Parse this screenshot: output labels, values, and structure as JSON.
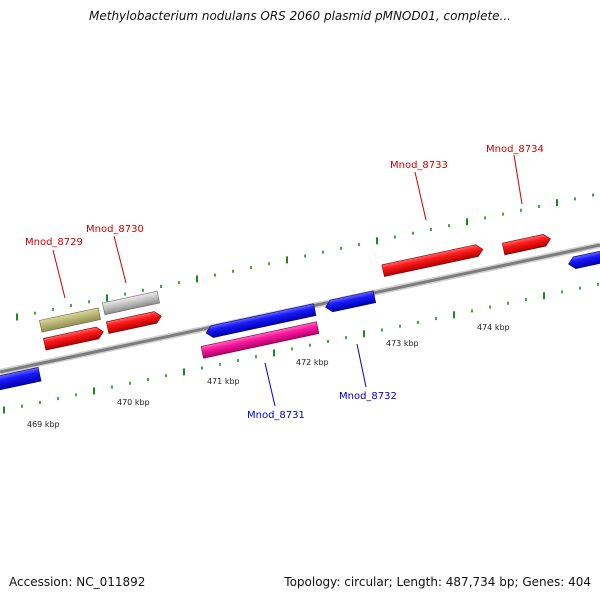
{
  "title": "Methylobacterium nodulans ORS 2060 plasmid pMNOD01, complete...",
  "footer": {
    "accession": "Accession: NC_011892",
    "summary": "Topology: circular; Length: 487,734 bp; Genes: 404"
  },
  "colors": {
    "forward_gene": "#ff1a1a",
    "reverse_gene": "#1a1aff",
    "other_gene_olive": "#bdbb7a",
    "other_gene_gray": "#c8c8c8",
    "other_gene_pink": "#ff1aa0",
    "backbone": "#8a8a8a",
    "ticks": "#1a8a1a",
    "forward_label": "#cc0000",
    "reverse_label": "#0000cc"
  },
  "scale_labels": [
    "469 kbp",
    "470 kbp",
    "471 kbp",
    "472 kbp",
    "473 kbp",
    "474 kbp"
  ],
  "gene_labels": [
    {
      "name": "Mnod_8729",
      "strand": "forward"
    },
    {
      "name": "Mnod_8730",
      "strand": "forward"
    },
    {
      "name": "Mnod_8731",
      "strand": "reverse"
    },
    {
      "name": "Mnod_8732",
      "strand": "reverse"
    },
    {
      "name": "Mnod_8733",
      "strand": "forward"
    },
    {
      "name": "Mnod_8734",
      "strand": "forward"
    }
  ]
}
